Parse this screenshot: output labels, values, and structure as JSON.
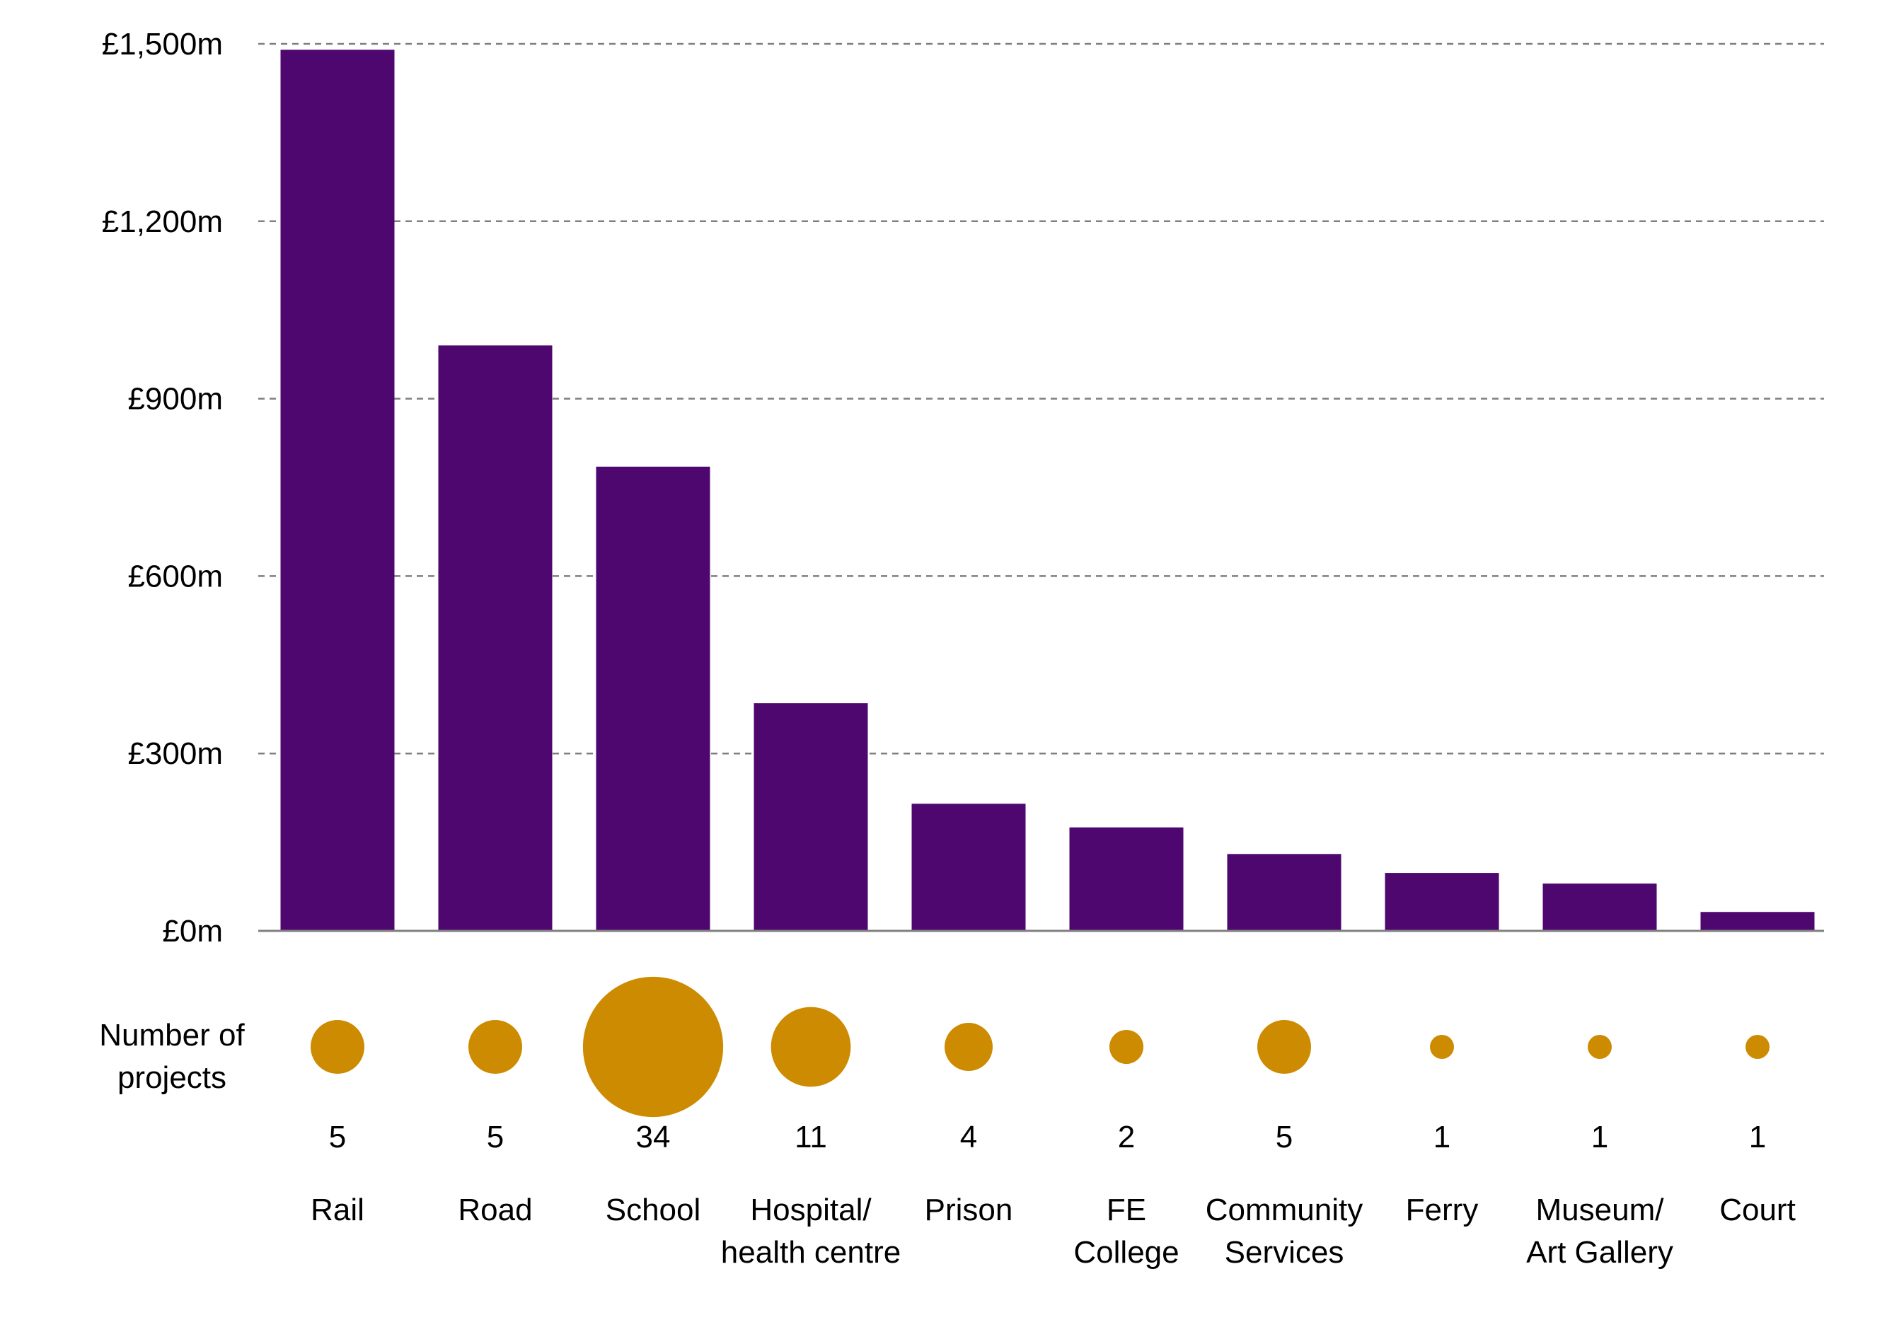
{
  "chart_data": {
    "type": "bar",
    "title": "",
    "xlabel": "",
    "ylabel": "",
    "y_tick_labels": [
      "£0m",
      "£300m",
      "£600m",
      "£900m",
      "£1,200m",
      "£1,500m"
    ],
    "y_ticks": [
      0,
      300,
      600,
      900,
      1200,
      1500
    ],
    "ylim": [
      0,
      1500
    ],
    "grid": true,
    "categories": [
      [
        "Rail"
      ],
      [
        "Road"
      ],
      [
        "School"
      ],
      [
        "Hospital/",
        "health centre"
      ],
      [
        "Prison"
      ],
      [
        "FE",
        "College"
      ],
      [
        "Community",
        "Services"
      ],
      [
        "Ferry"
      ],
      [
        "Museum/",
        "Art Gallery"
      ],
      [
        "Court"
      ]
    ],
    "values": [
      1490,
      990,
      785,
      385,
      215,
      175,
      130,
      98,
      80,
      32
    ],
    "bubble_caption": [
      "Number of",
      "projects"
    ],
    "project_counts": [
      5,
      5,
      34,
      11,
      4,
      2,
      5,
      1,
      1,
      1
    ],
    "colors": {
      "bar": "#4f0770",
      "bubble": "#cc8b00",
      "grid": "#7f7f7f",
      "axis": "#7f7f7f"
    }
  }
}
